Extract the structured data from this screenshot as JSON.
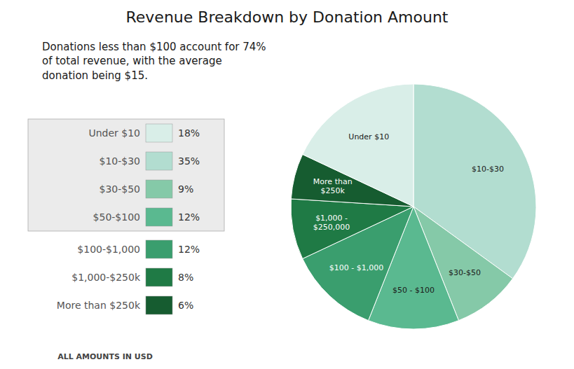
{
  "chart_data": {
    "type": "pie",
    "title": "Revenue Breakdown by Donation Amount",
    "subtitle": "Donations less than $100 account for 74%\nof total revenue, with the average\ndonation being $15.",
    "footer": "ALL AMOUNTS IN USD",
    "categories": [
      "$10-$30",
      "$30-$50",
      "$50 - $100",
      "$100 - $1,000",
      "$1,000 -\n$250,000",
      "More than\n$250k",
      "Under $10"
    ],
    "values": [
      35,
      9,
      12,
      12,
      8,
      6,
      18
    ],
    "colors": [
      "#b2ddd0",
      "#85c9a8",
      "#5ab990",
      "#3a9e6e",
      "#1f7a45",
      "#165c30",
      "#d9eee8"
    ],
    "legend_entries": {
      "labels": [
        "Under $10",
        "$10-$30",
        "$30-$50",
        "$50-$100",
        "$100-$1,000",
        "$1,000-$250k",
        "More than $250k"
      ],
      "values": [
        18,
        35,
        9,
        12,
        12,
        8,
        6
      ],
      "value_labels": [
        "18%",
        "35%",
        "9%",
        "12%",
        "12%",
        "8%",
        "6%"
      ],
      "colors": [
        "#d9eee8",
        "#b2ddd0",
        "#85c9a8",
        "#5ab990",
        "#3a9e6e",
        "#1f7a45",
        "#165c30"
      ]
    }
  }
}
